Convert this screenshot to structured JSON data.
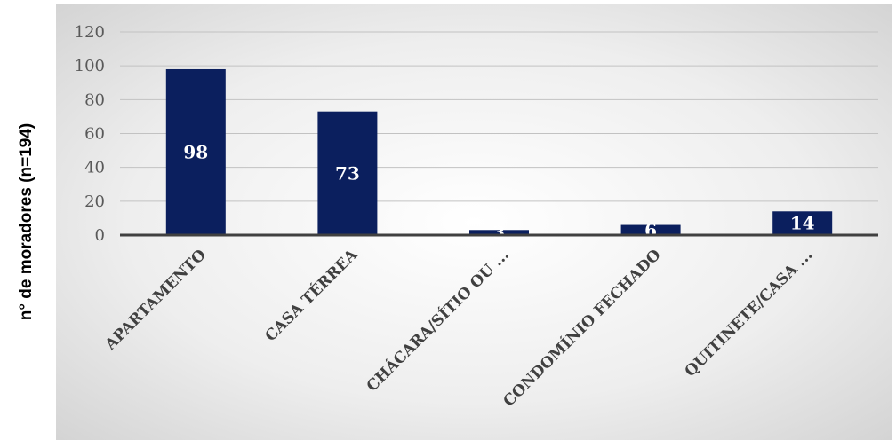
{
  "chart_data": {
    "type": "bar",
    "ylabel": "n° de moradores (n=194)",
    "categories": [
      "APARTAMENTO",
      "CASA TÉRREA",
      "CHÁCARA/SÍTIO OU ...",
      "CONDOMÍNIO FECHADO",
      "QUITINETE/CASA ..."
    ],
    "values": [
      98,
      73,
      3,
      6,
      14
    ],
    "data_labels": [
      "98",
      "73",
      "3",
      "6",
      "14"
    ],
    "ylim": [
      0,
      120
    ],
    "yticks": [
      "0",
      "20",
      "40",
      "60",
      "80",
      "100",
      "120"
    ],
    "grid": true,
    "legend": "none",
    "bar_color": "#0b1f5e",
    "label_color": "#ffffff"
  }
}
